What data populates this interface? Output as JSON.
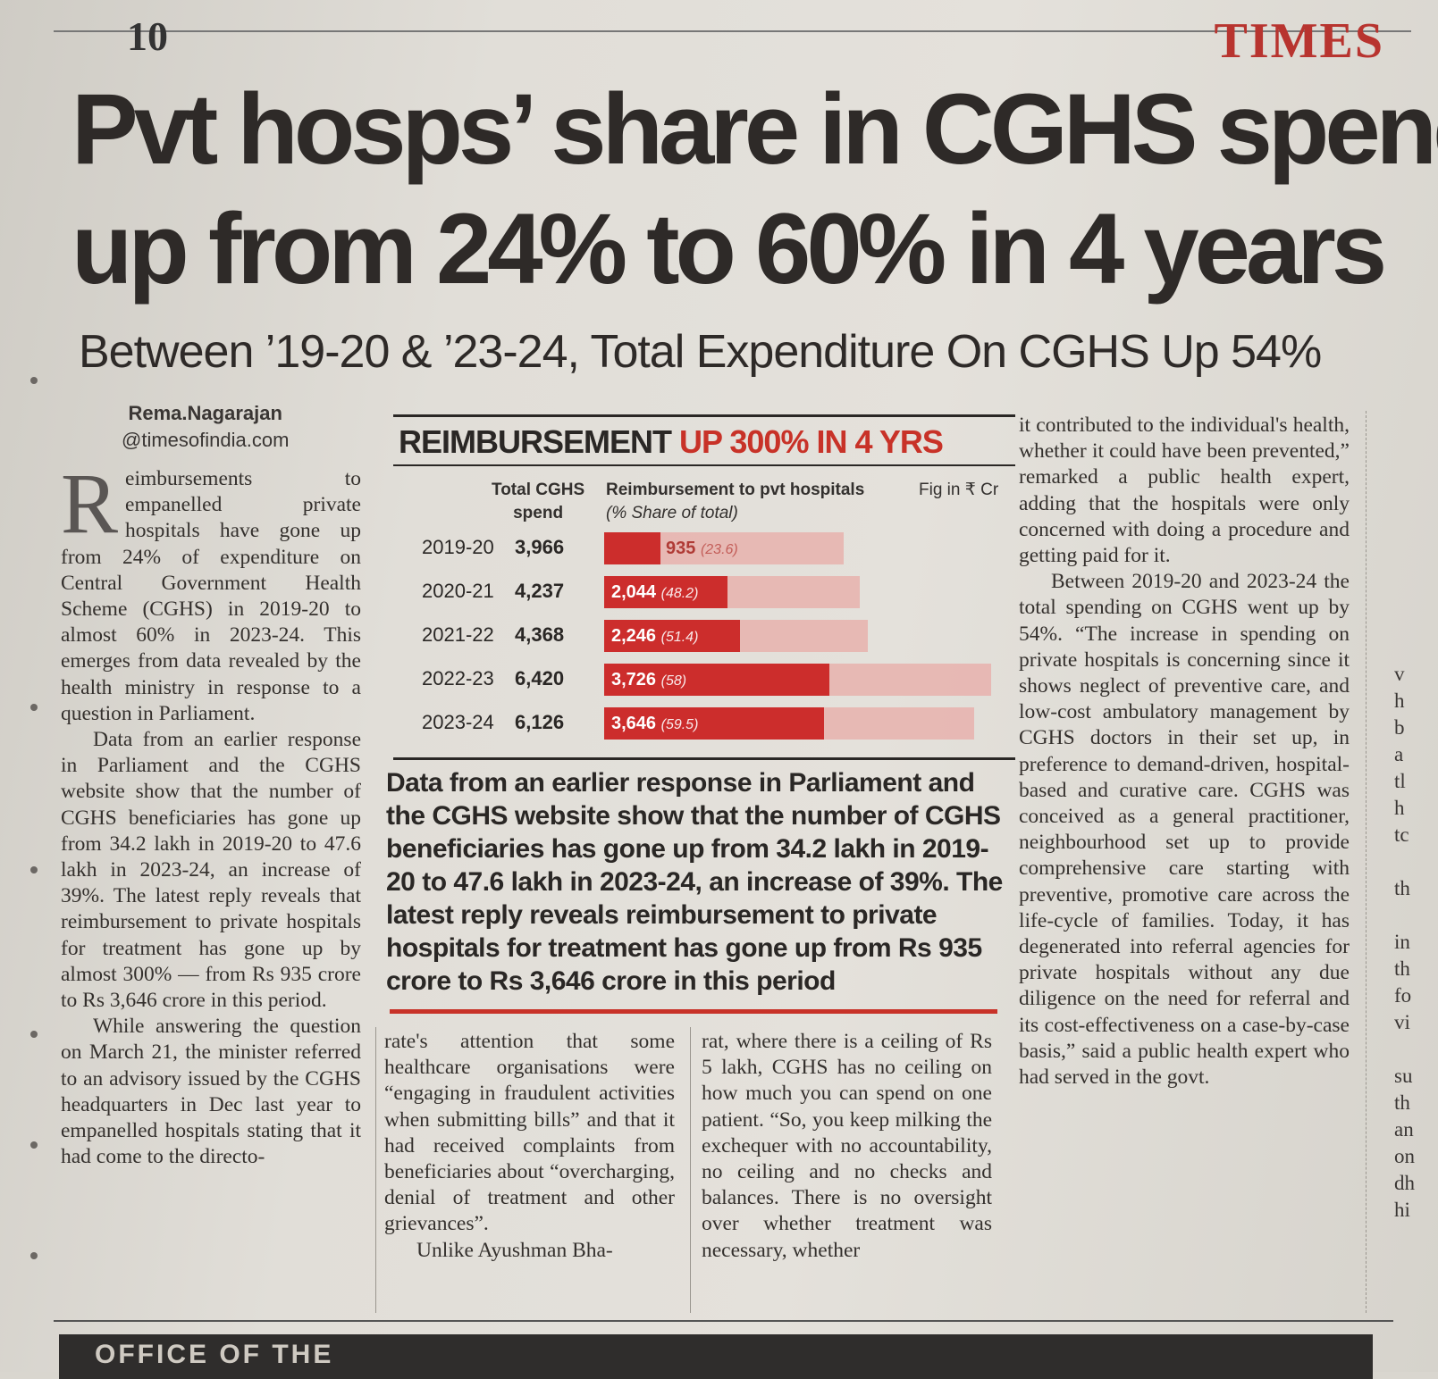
{
  "page_number": "10",
  "masthead": "TIMES",
  "headline": {
    "line1": "Pvt hosps’ share in CGHS spend",
    "line2": "up from 24% to 60% in 4 years"
  },
  "deck": "Between ’19-20 & ’23-24, Total Expenditure On CGHS Up 54%",
  "byline": {
    "name": "Rema.Nagarajan",
    "handle": "@timesofindia.com"
  },
  "chart_data": {
    "type": "bar",
    "title": "REIMBURSEMENT",
    "title_highlight": "UP 300% IN 4 YRS",
    "col_total": [
      "Total CGHS",
      "spend"
    ],
    "col_reimb": [
      "Reimbursement to pvt hospitals",
      "(% Share of total)"
    ],
    "unit_note": "Fig in ₹ Cr",
    "categories": [
      "2019-20",
      "2020-21",
      "2021-22",
      "2022-23",
      "2023-24"
    ],
    "total_cghs_spend": [
      3966,
      4237,
      4368,
      6420,
      6126
    ],
    "total_labels": [
      "3,966",
      "4,237",
      "4,368",
      "6,420",
      "6,126"
    ],
    "series": [
      {
        "name": "Reimbursement to pvt hospitals",
        "values": [
          935,
          2044,
          2246,
          3726,
          3646
        ],
        "labels": [
          "935",
          "2,044",
          "2,246",
          "3,726",
          "3,646"
        ],
        "share_pct": [
          23.6,
          48.2,
          51.4,
          58,
          59.5
        ],
        "share_labels": [
          "(23.6)",
          "(48.2)",
          "(51.4)",
          "(58)",
          "(59.5)"
        ]
      }
    ],
    "colors": {
      "bar": "#cc2d2c",
      "background_bar": "#e7b2ad",
      "accent": "#c83228"
    }
  },
  "pullquote": "Data from an earlier response in Parliament and the CGHS website show that the number of CGHS beneficiaries has gone up from 34.2 lakh in 2019-20 to 47.6 lakh in 2023-24, an increase of 39%. The latest reply reveals reimbursement to private hospitals for treatment has gone up from Rs 935 crore to Rs 3,646 crore in this period",
  "body": {
    "dropcap": "R",
    "col1_p1": "eimbursements to empanelled private hospitals have gone up from 24% of expenditure on Central Government Health Scheme (CGHS) in 2019-20 to almost 60% in 2023-24. This emerges from data revealed by the health ministry in response to a question in Parliament.",
    "col1_p2": "Data from an earlier response in Parliament and the CGHS website show that the number of CGHS beneficiaries has gone up from 34.2 lakh in 2019-20 to 47.6 lakh in 2023-24, an increase of 39%. The latest reply reveals that reimbursement to private hospitals for treatment has gone up by almost 300% — from Rs 935 crore to Rs 3,646 crore in this period.",
    "col1_p3": "While answering the question on March 21, the minister referred to an advisory issued by the CGHS headquarters in Dec last year to empanelled hospitals stating that it had come to the directo-",
    "col2_p1": "rate's attention that some healthcare organisations were “engaging in fraudulent activities when submitting bills” and that it had received complaints from beneficiaries about “overcharging, denial of treatment and other grievances”.",
    "col2_p2": "Unlike Ayushman Bha-",
    "col3_p1": "rat, where there is a ceiling of Rs 5 lakh, CGHS has no ceiling on how much you can spend on one patient. “So, you keep milking the exchequer with no accountability, no ceiling and no checks and balances. There is no oversight over whether treatment was necessary, whether",
    "col4_p1": "it contributed to the individual's health, whether it could have been prevented,” remarked a public health expert, adding that the hospitals were only concerned with doing a procedure and getting paid for it.",
    "col4_p2": "Between 2019-20 and 2023-24 the total spending on CGHS went up by 54%. “The increase in spending on private hospitals is concerning since it shows neglect of preventive care, and low-cost ambulatory management by CGHS doctors in their set up, in preference to demand-driven, hospital-based and curative care. CGHS was conceived as a general practitioner, neighbourhood set up to provide comprehensive care starting with preventive, promotive care across the life-cycle of families. Today, it has degenerated into referral agencies for private hospitals without any due diligence on the need for referral and its cost-effectiveness on a case-by-case basis,” said a public health expert who had served in the govt."
  },
  "edge_fragments": [
    "v",
    "h",
    "b",
    "a",
    "tl",
    "h",
    "tc",
    "",
    "th",
    "",
    "in",
    "th",
    "fo",
    "vi",
    "",
    "su",
    "th",
    "an",
    "on",
    "dh",
    "hi"
  ],
  "footer_text": "OFFICE OF THE"
}
